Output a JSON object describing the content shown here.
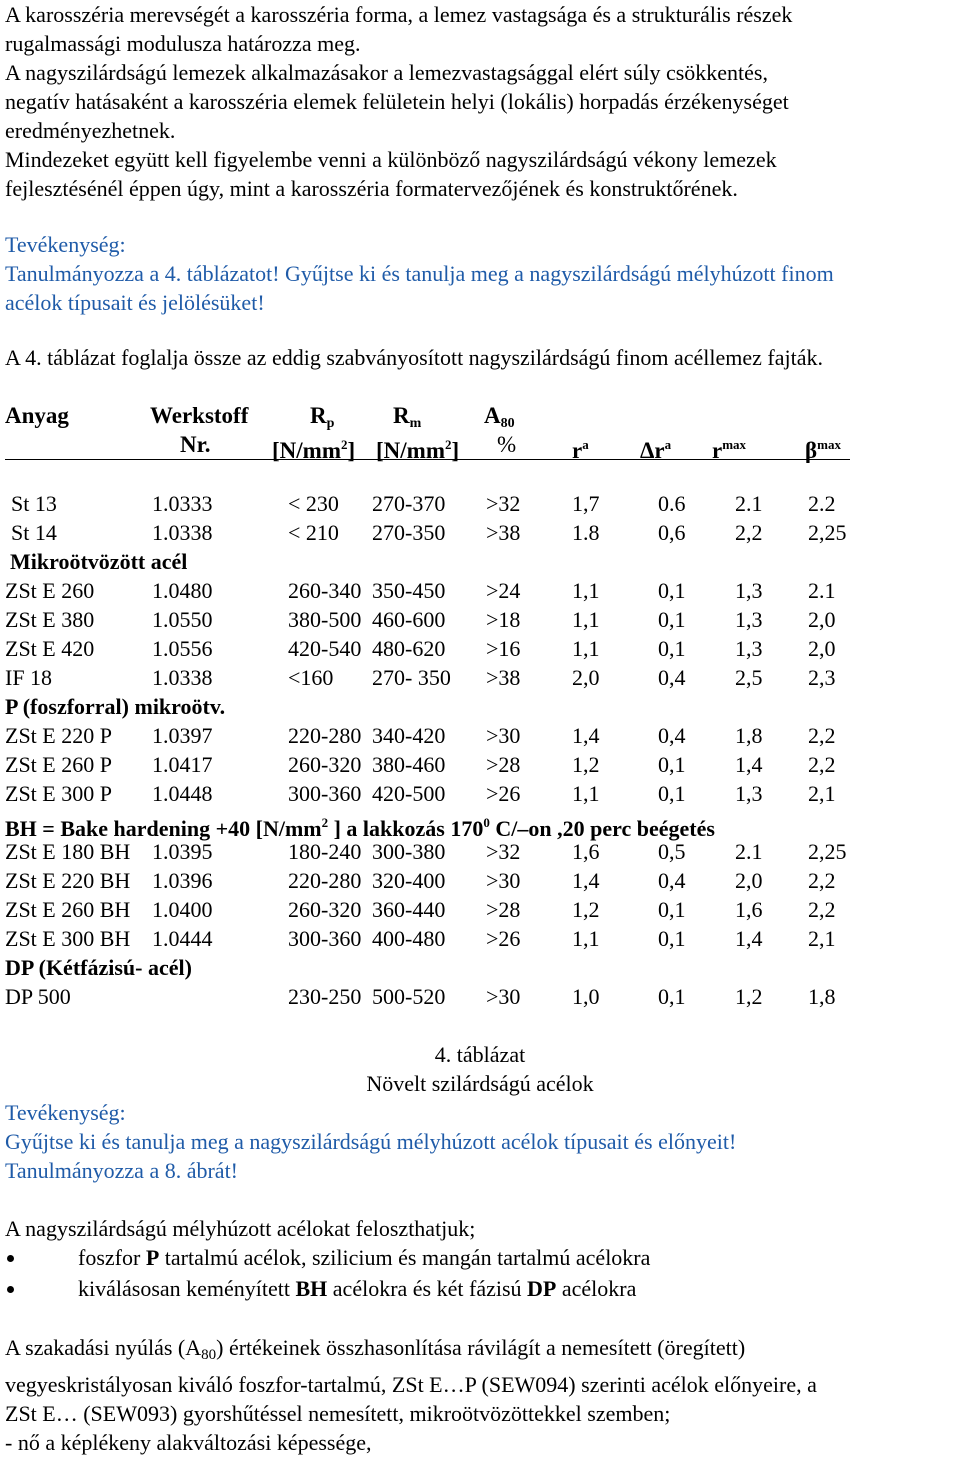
{
  "intro": [
    "A karosszéria merevségét a karosszéria forma, a lemez vastagsága és a strukturális részek",
    "rugalmassági modulusza határozza meg.",
    "A nagyszilárdságú lemezek alkalmazásakor a lemezvastagsággal  elért súly csökkentés,",
    "negatív hatásaként  a karosszéria elemek felületein helyi (lokális) horpadás érzékenységet",
    "eredményezhetnek.",
    "Mindezeket együtt kell figyelembe venni a különböző nagyszilárdságú vékony lemezek",
    "fejlesztésénél éppen úgy, mint a karosszéria formatervezőjének és konstruktőrének."
  ],
  "activity1": {
    "heading": "Tevékenység:",
    "lines": [
      "Tanulmányozza a 4. táblázatot! Gyűjtse ki és tanulja meg a nagyszilárdságú mélyhúzott finom",
      "acélok típusait és jelölésüket!"
    ]
  },
  "table_intro": "A 4. táblázat foglalja össze az eddig szabványosított nagyszilárdságú finom acéllemez fajták.",
  "table": {
    "header1": {
      "anyag": "Anyag",
      "werkstoff": "Werkstoff",
      "rp": "R",
      "rp_sub": "p",
      "rm": "R",
      "rm_sub": "m",
      "a": "A",
      "a_sub": "80"
    },
    "header2": {
      "nr": "Nr.",
      "rp_unit_a": "[N/mm",
      "rp_unit_sup": "2",
      "rp_unit_b": "]",
      "rm_unit_a": "[N/mm",
      "rm_unit_sup": "2",
      "rm_unit_b": "]",
      "pct": "%",
      "r": "r",
      "r_sup": "a",
      "dr": "Δr",
      "dr_sup": "a",
      "rmax": "r",
      "rmax_sup": "max",
      "beta": "β",
      "beta_sup": "max"
    },
    "rows": [
      {
        "type": "data",
        "cells": [
          "St 13",
          "1.0333",
          "< 230",
          "270-370",
          ">32",
          "1,7",
          "0.6",
          "2.1",
          "2.2"
        ]
      },
      {
        "type": "data",
        "cells": [
          "St 14",
          "1.0338",
          "< 210",
          "270-350",
          ">38",
          "1.8",
          "0,6",
          "2,2",
          "2,25"
        ]
      },
      {
        "type": "group",
        "text": "Mikroötvözött acél"
      },
      {
        "type": "data",
        "cells": [
          "ZSt E 260",
          "1.0480",
          "260-340",
          "350-450",
          ">24",
          "1,1",
          "0,1",
          "1,3",
          "2.1"
        ]
      },
      {
        "type": "data",
        "cells": [
          "ZSt E 380",
          "1.0550",
          "380-500",
          "460-600",
          ">18",
          "1,1",
          "0,1",
          "1,3",
          "2,0"
        ]
      },
      {
        "type": "data",
        "cells": [
          "ZSt E 420",
          "1.0556",
          "420-540",
          "480-620",
          ">16",
          "1,1",
          "0,1",
          "1,3",
          "2,0"
        ]
      },
      {
        "type": "data",
        "cells": [
          "IF 18",
          "1.0338",
          "<160",
          "270- 350",
          ">38",
          "2,0",
          "0,4",
          "2,5",
          "2,3"
        ]
      },
      {
        "type": "group",
        "text": "P (foszforral) mikroötv."
      },
      {
        "type": "data",
        "cells": [
          "ZSt E 220 P",
          "1.0397",
          "220-280",
          "340-420",
          ">30",
          "1,4",
          "0,4",
          "1,8",
          "2,2"
        ]
      },
      {
        "type": "data",
        "cells": [
          "ZSt E 260 P",
          "1.0417",
          "260-320",
          "380-460",
          ">28",
          "1,2",
          "0,1",
          "1,4",
          "2,2"
        ]
      },
      {
        "type": "data",
        "cells": [
          "ZSt E 300 P",
          "1.0448",
          "300-360",
          "420-500",
          ">26",
          "1,1",
          "0,1",
          "1,3",
          "2,1"
        ]
      },
      {
        "type": "bh"
      },
      {
        "type": "data",
        "cells": [
          "ZSt E 180 BH",
          "1.0395",
          "180-240",
          "300-380",
          ">32",
          "1,6",
          "0,5",
          "2.1",
          "2,25"
        ]
      },
      {
        "type": "data",
        "cells": [
          "ZSt E 220 BH",
          "1.0396",
          "220-280",
          "320-400",
          ">30",
          "1,4",
          "0,4",
          "2,0",
          "2,2"
        ]
      },
      {
        "type": "data",
        "cells": [
          "ZSt E 260 BH",
          "1.0400",
          "260-320",
          "360-440",
          ">28",
          "1,2",
          "0,1",
          "1,6",
          "2,2"
        ]
      },
      {
        "type": "data",
        "cells": [
          "ZSt E 300 BH",
          "1.0444",
          "300-360",
          "400-480",
          ">26",
          "1,1",
          "0,1",
          "1,4",
          "2,1"
        ]
      },
      {
        "type": "group",
        "text": "DP (Kétfázisú- acél)"
      },
      {
        "type": "data",
        "cells": [
          "DP 500",
          "",
          "230-250",
          "500-520",
          ">30",
          "1,0",
          "0,1",
          "1,2",
          "1,8"
        ]
      }
    ],
    "bh_line": {
      "a": "BH  = Bake hardening  +40 [N/mm",
      "sup1": "2",
      "b": " ] a lakkozás 170",
      "sup2": "0",
      "c": " C/–on ,20 perc  beégetés"
    },
    "caption_number": "4. táblázat",
    "caption_title": "Növelt szilárdságú acélok"
  },
  "activity2": {
    "heading": "Tevékenység:",
    "lines": [
      "Gyűjtse ki és tanulja meg a nagyszilárdságú mélyhúzott acélok típusait és előnyeit!",
      "Tanulmányozza a 8. ábrát!"
    ]
  },
  "classification": {
    "lead": "A nagyszilárdságú mélyhúzott acélokat feloszthatjuk;",
    "bullets": [
      {
        "a": "foszfor ",
        "b": "P",
        "c": " tartalmú acélok, szilicium  és mangán tartalmú acélokra"
      },
      {
        "a": "kiválásosan keményített ",
        "b": "BH",
        "c": " acélokra és két fázisú  ",
        "d": "DP",
        "e": " acélokra"
      }
    ]
  },
  "closing": {
    "l1_a": "A szakadási nyúlás (A",
    "l1_sub": "80",
    "l1_b": ") értékeinek összhasonlítása rávilágít a nemesített  (öregített)",
    "l2": "vegyeskristályosan kiváló foszfor-tartalmú, ZSt E…P (SEW094) szerinti acélok előnyeire, a",
    "l3": "ZSt E…  (SEW093) gyorshűtéssel nemesített, mikroötvözöttekkel szemben;",
    "l4": " - nő a képlékeny alakváltozási képessége,"
  }
}
